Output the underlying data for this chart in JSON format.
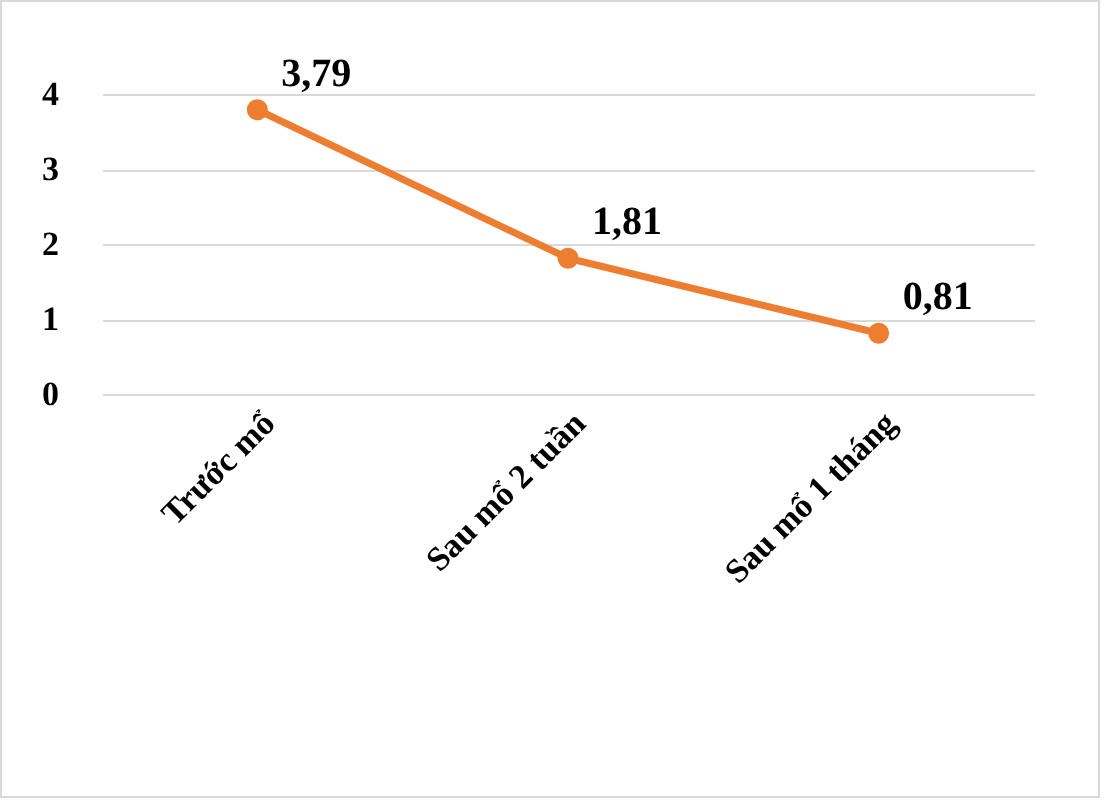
{
  "chart_data": {
    "type": "line",
    "categories": [
      "Trước mổ",
      "Sau mổ 2 tuần",
      "Sau mổ 1 tháng"
    ],
    "series": [
      {
        "color": "#ed7d31",
        "values": [
          3.79,
          1.81,
          0.81
        ],
        "value_labels": [
          "3,79",
          "1,81",
          "0,81"
        ]
      }
    ],
    "ylim": [
      0,
      4
    ],
    "yticks": [
      0,
      1,
      2,
      3,
      4
    ],
    "grid": "y",
    "marker": "circle",
    "line_style": "solid"
  }
}
